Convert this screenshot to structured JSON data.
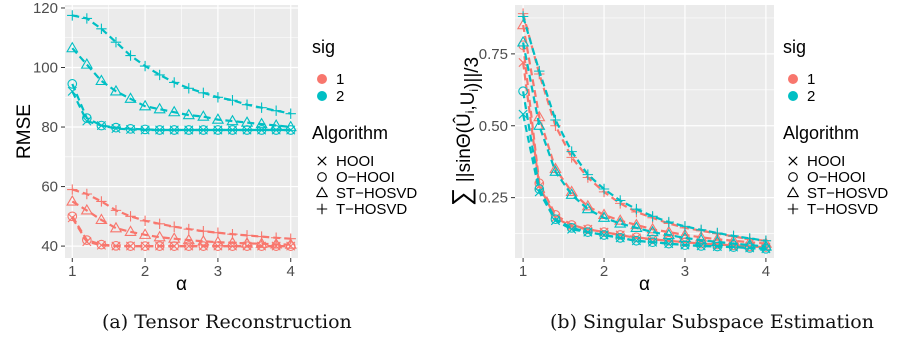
{
  "captions": [
    "(a) Tensor Reconstruction",
    "(b) Singular Subspace Estimation"
  ],
  "chart_data": [
    {
      "type": "line",
      "panel_label": "(a)",
      "caption": "Tensor Reconstruction",
      "xlabel": "α",
      "ylabel": "RMSE",
      "xlim": [
        0.9,
        4.1
      ],
      "ylim": [
        36,
        121
      ],
      "xticks": [
        "1",
        "2",
        "3",
        "4"
      ],
      "yticks": [
        "40",
        "60",
        "80",
        "100",
        "120"
      ],
      "grid": true,
      "legend_placement": "right",
      "legend": {
        "color_title": "sig",
        "color_entries": [
          {
            "label": "1",
            "color": "#F8766D"
          },
          {
            "label": "2",
            "color": "#00BFC4"
          }
        ],
        "shape_title": "Algorithm",
        "shape_entries": [
          {
            "label": "HOOI",
            "shape": "cross"
          },
          {
            "label": "O−HOOI",
            "shape": "circle"
          },
          {
            "label": "ST−HOSVD",
            "shape": "triangle"
          },
          {
            "label": "T−HOSVD",
            "shape": "plus"
          }
        ]
      },
      "x": [
        1.0,
        1.2,
        1.4,
        1.6,
        1.8,
        2.0,
        2.2,
        2.4,
        2.6,
        2.8,
        3.0,
        3.2,
        3.4,
        3.6,
        3.8,
        4.0
      ],
      "series": [
        {
          "sig": "1",
          "algorithm": "HOOI",
          "values": [
            49.5,
            41.5,
            40.3,
            40.0,
            40.0,
            40.0,
            40.0,
            40.0,
            40.0,
            40.0,
            40.0,
            40.0,
            40.0,
            40.0,
            40.0,
            40.0
          ]
        },
        {
          "sig": "1",
          "algorithm": "O−HOOI",
          "values": [
            50.0,
            42.0,
            40.5,
            40.1,
            40.0,
            40.0,
            40.0,
            40.0,
            40.0,
            40.0,
            40.0,
            40.0,
            40.0,
            40.0,
            40.0,
            40.0
          ]
        },
        {
          "sig": "1",
          "algorithm": "ST−HOSVD",
          "values": [
            55.0,
            52.0,
            48.8,
            46.0,
            44.8,
            43.8,
            43.0,
            42.5,
            42.0,
            41.6,
            41.3,
            41.1,
            40.9,
            40.8,
            40.6,
            40.5
          ]
        },
        {
          "sig": "1",
          "algorithm": "T−HOSVD",
          "values": [
            59.0,
            57.5,
            55.0,
            52.0,
            50.0,
            48.5,
            47.5,
            46.5,
            45.7,
            45.0,
            44.5,
            44.0,
            43.6,
            43.2,
            42.8,
            42.5
          ]
        },
        {
          "sig": "2",
          "algorithm": "HOOI",
          "values": [
            92.0,
            82.0,
            80.5,
            79.5,
            79.2,
            79.0,
            79.0,
            79.0,
            79.0,
            79.0,
            79.0,
            79.0,
            79.0,
            79.0,
            79.0,
            79.0
          ]
        },
        {
          "sig": "2",
          "algorithm": "O−HOOI",
          "values": [
            94.5,
            83.0,
            80.5,
            79.8,
            79.4,
            79.2,
            79.0,
            79.0,
            79.0,
            79.0,
            79.0,
            79.0,
            79.0,
            79.0,
            79.0,
            79.0
          ]
        },
        {
          "sig": "2",
          "algorithm": "ST−HOSVD",
          "values": [
            106.5,
            101.0,
            95.5,
            92.0,
            89.5,
            87.0,
            86.0,
            85.0,
            84.0,
            83.5,
            82.5,
            82.0,
            81.5,
            81.0,
            80.5,
            80.0
          ]
        },
        {
          "sig": "2",
          "algorithm": "T−HOSVD",
          "values": [
            117.5,
            116.5,
            113.0,
            108.5,
            104.0,
            100.5,
            97.5,
            95.0,
            93.0,
            91.5,
            90.0,
            89.0,
            87.5,
            86.5,
            85.5,
            84.5
          ]
        }
      ]
    },
    {
      "type": "line",
      "panel_label": "(b)",
      "caption": "Singular Subspace Estimation",
      "xlabel": "α",
      "ylabel": "∑ ||sinΘ(Û_i, U_i)||/3",
      "ylabel_parts": {
        "sum": "∑",
        "body": "||sinΘ(",
        "hat": "Û",
        "sub1": "i",
        "mid": ",U",
        "sub2": "i",
        "end": ")||/3"
      },
      "xlim": [
        0.9,
        4.1
      ],
      "ylim": [
        0.04,
        0.92
      ],
      "xticks": [
        "1",
        "2",
        "3",
        "4"
      ],
      "yticks": [
        "0.25",
        "0.50",
        "0.75"
      ],
      "grid": true,
      "legend_placement": "right",
      "legend": {
        "color_title": "sig",
        "color_entries": [
          {
            "label": "1",
            "color": "#F8766D"
          },
          {
            "label": "2",
            "color": "#00BFC4"
          }
        ],
        "shape_title": "Algorithm",
        "shape_entries": [
          {
            "label": "HOOI",
            "shape": "cross"
          },
          {
            "label": "O−HOOI",
            "shape": "circle"
          },
          {
            "label": "ST−HOSVD",
            "shape": "triangle"
          },
          {
            "label": "T−HOSVD",
            "shape": "plus"
          }
        ]
      },
      "x": [
        1.0,
        1.2,
        1.4,
        1.6,
        1.8,
        2.0,
        2.2,
        2.4,
        2.6,
        2.8,
        3.0,
        3.2,
        3.4,
        3.6,
        3.8,
        4.0
      ],
      "series": [
        {
          "sig": "1",
          "algorithm": "HOOI",
          "values": [
            0.72,
            0.29,
            0.18,
            0.15,
            0.14,
            0.13,
            0.12,
            0.11,
            0.105,
            0.1,
            0.095,
            0.09,
            0.087,
            0.084,
            0.08,
            0.078
          ]
        },
        {
          "sig": "1",
          "algorithm": "O−HOOI",
          "values": [
            0.78,
            0.3,
            0.19,
            0.155,
            0.14,
            0.13,
            0.12,
            0.112,
            0.105,
            0.1,
            0.095,
            0.09,
            0.087,
            0.084,
            0.08,
            0.078
          ]
        },
        {
          "sig": "1",
          "algorithm": "ST−HOSVD",
          "values": [
            0.85,
            0.53,
            0.35,
            0.27,
            0.22,
            0.19,
            0.17,
            0.155,
            0.14,
            0.13,
            0.12,
            0.112,
            0.105,
            0.1,
            0.095,
            0.09
          ]
        },
        {
          "sig": "1",
          "algorithm": "T−HOSVD",
          "values": [
            0.89,
            0.68,
            0.5,
            0.39,
            0.32,
            0.27,
            0.23,
            0.2,
            0.18,
            0.16,
            0.145,
            0.135,
            0.125,
            0.115,
            0.105,
            0.1
          ]
        },
        {
          "sig": "2",
          "algorithm": "HOOI",
          "values": [
            0.54,
            0.27,
            0.17,
            0.14,
            0.13,
            0.12,
            0.11,
            0.1,
            0.095,
            0.09,
            0.085,
            0.082,
            0.08,
            0.078,
            0.075,
            0.072
          ]
        },
        {
          "sig": "2",
          "algorithm": "O−HOOI",
          "values": [
            0.62,
            0.28,
            0.175,
            0.145,
            0.13,
            0.12,
            0.11,
            0.1,
            0.095,
            0.09,
            0.085,
            0.082,
            0.08,
            0.078,
            0.075,
            0.072
          ]
        },
        {
          "sig": "2",
          "algorithm": "ST−HOSVD",
          "values": [
            0.79,
            0.5,
            0.34,
            0.26,
            0.21,
            0.18,
            0.16,
            0.145,
            0.13,
            0.12,
            0.11,
            0.102,
            0.096,
            0.09,
            0.085,
            0.08
          ]
        },
        {
          "sig": "2",
          "algorithm": "T−HOSVD",
          "values": [
            0.88,
            0.69,
            0.52,
            0.41,
            0.33,
            0.28,
            0.24,
            0.21,
            0.185,
            0.165,
            0.15,
            0.138,
            0.127,
            0.117,
            0.108,
            0.1
          ]
        }
      ]
    }
  ]
}
